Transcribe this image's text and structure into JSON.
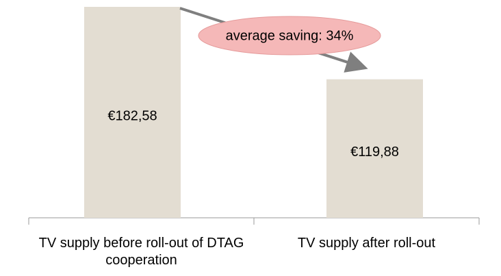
{
  "chart_data": {
    "type": "bar",
    "categories": [
      "TV supply before roll-out of DTAG cooperation",
      "TV supply after roll-out"
    ],
    "values": [
      182.58,
      119.88
    ],
    "value_labels": [
      "€182,58",
      "€119,88"
    ],
    "color": "#e3ddd2",
    "annotation": "average saving: 34%"
  }
}
